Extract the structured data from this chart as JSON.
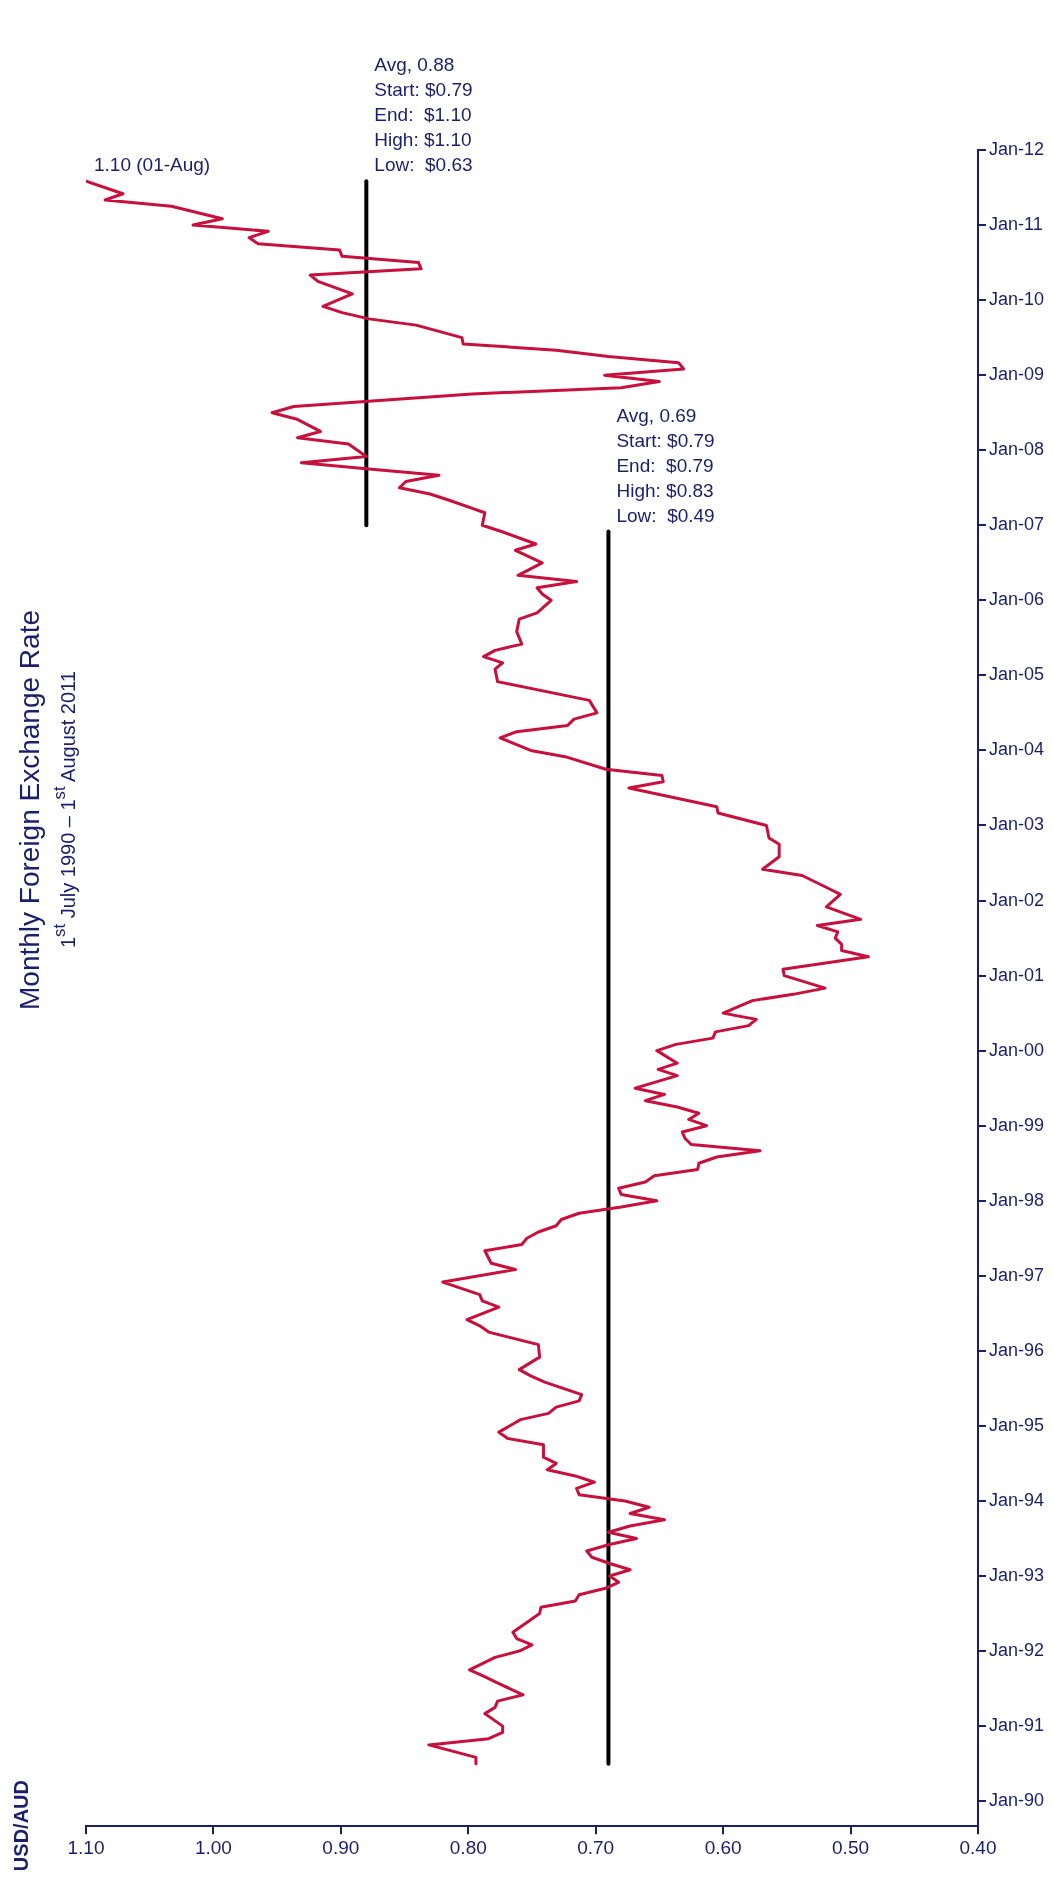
{
  "chart_data": {
    "type": "line",
    "title": "Monthly Foreign Exchange Rate",
    "subtitle": "1$^{st}$ July 1990 – 1$^{st}$ August 2011",
    "ylabel": "USD/AUD",
    "marker": "none",
    "legend": false,
    "orientation": "horizontal",
    "ylim": [
      "1989-09",
      "2012-01"
    ],
    "yticks": [
      {
        "value": "1990-01",
        "label": "Jan-90"
      },
      {
        "value": "1991-01",
        "label": "Jan-91"
      },
      {
        "value": "1992-01",
        "label": "Jan-92"
      },
      {
        "value": "1993-01",
        "label": "Jan-93"
      },
      {
        "value": "1994-01",
        "label": "Jan-94"
      },
      {
        "value": "1995-01",
        "label": "Jan-95"
      },
      {
        "value": "1996-01",
        "label": "Jan-96"
      },
      {
        "value": "1997-01",
        "label": "Jan-97"
      },
      {
        "value": "1998-01",
        "label": "Jan-98"
      },
      {
        "value": "1999-01",
        "label": "Jan-99"
      },
      {
        "value": "2000-01",
        "label": "Jan-00"
      },
      {
        "value": "2001-01",
        "label": "Jan-01"
      },
      {
        "value": "2002-01",
        "label": "Jan-02"
      },
      {
        "value": "2003-01",
        "label": "Jan-03"
      },
      {
        "value": "2004-01",
        "label": "Jan-04"
      },
      {
        "value": "2005-01",
        "label": "Jan-05"
      },
      {
        "value": "2006-01",
        "label": "Jan-06"
      },
      {
        "value": "2007-01",
        "label": "Jan-07"
      },
      {
        "value": "2008-01",
        "label": "Jan-08"
      },
      {
        "value": "2009-01",
        "label": "Jan-09"
      },
      {
        "value": "2010-01",
        "label": "Jan-10"
      },
      {
        "value": "2011-01",
        "label": "Jan-11"
      },
      {
        "value": "2012-01",
        "label": "Jan-12"
      }
    ],
    "xlim": [
      1.1,
      0.4
    ],
    "xticks": [
      {
        "value": 0.4,
        "label": "0.40"
      },
      {
        "value": 0.5,
        "label": "0.50"
      },
      {
        "value": 0.6,
        "label": "0.60"
      },
      {
        "value": 0.7,
        "label": "0.70"
      },
      {
        "value": 0.8,
        "label": "0.80"
      },
      {
        "value": 0.9,
        "label": "0.90"
      },
      {
        "value": 1.0,
        "label": "1.00"
      },
      {
        "value": 1.1,
        "label": "1.10"
      }
    ],
    "series": [
      {
        "color": "#c8103c",
        "x": [
          "1990-07",
          "1990-08",
          "1990-10",
          "1990-11",
          "1990-12",
          "1991-01",
          "1991-03",
          "1991-04",
          "1991-05",
          "1991-06",
          "1991-08",
          "1991-09",
          "1991-10",
          "1991-12",
          "1992-01",
          "1992-02",
          "1992-03",
          "1992-04",
          "1992-05",
          "1992-07",
          "1992-08",
          "1992-09",
          "1992-10",
          "1992-11",
          "1992-12",
          "1993-01",
          "1993-02",
          "1993-03",
          "1993-04",
          "1993-05",
          "1993-06",
          "1993-07",
          "1993-08",
          "1993-09",
          "1993-10",
          "1993-11",
          "1993-12",
          "1994-01",
          "1994-02",
          "1994-03",
          "1994-04",
          "1994-05",
          "1994-06",
          "1994-07",
          "1994-08",
          "1994-10",
          "1994-11",
          "1994-12",
          "1995-02",
          "1995-03",
          "1995-04",
          "1995-05",
          "1995-06",
          "1995-08",
          "1995-09",
          "1995-10",
          "1995-12",
          "1996-02",
          "1996-04",
          "1996-05",
          "1996-06",
          "1996-08",
          "1996-09",
          "1996-10",
          "1996-12",
          "1997-02",
          "1997-03",
          "1997-05",
          "1997-06",
          "1997-07",
          "1997-08",
          "1997-09",
          "1997-10",
          "1997-11",
          "1997-12",
          "1998-01",
          "1998-02",
          "1998-03",
          "1998-04",
          "1998-05",
          "1998-06",
          "1998-07",
          "1998-08",
          "1998-09",
          "1998-10",
          "1998-11",
          "1998-12",
          "1999-01",
          "1999-02",
          "1999-03",
          "1999-04",
          "1999-05",
          "1999-06",
          "1999-07",
          "1999-09",
          "1999-10",
          "1999-11",
          "2000-01",
          "2000-02",
          "2000-03",
          "2000-04",
          "2000-05",
          "2000-06",
          "2000-07",
          "2000-09",
          "2000-10",
          "2000-11",
          "2001-01",
          "2001-02",
          "2001-04",
          "2001-05",
          "2001-06",
          "2001-07",
          "2001-08",
          "2001-09",
          "2001-10",
          "2001-12",
          "2002-02",
          "2002-03",
          "2002-05",
          "2002-06",
          "2002-08",
          "2002-10",
          "2002-11",
          "2003-01",
          "2003-03",
          "2003-04",
          "2003-07",
          "2003-08",
          "2003-09",
          "2003-10",
          "2003-12",
          "2004-01",
          "2004-02",
          "2004-03",
          "2004-04",
          "2004-05",
          "2004-06",
          "2004-07",
          "2004-09",
          "2004-12",
          "2005-02",
          "2005-03",
          "2005-04",
          "2005-05",
          "2005-06",
          "2005-08",
          "2005-10",
          "2005-11",
          "2006-01",
          "2006-02",
          "2006-03",
          "2006-04",
          "2006-05",
          "2006-07",
          "2006-09",
          "2006-10",
          "2006-12",
          "2007-01",
          "2007-03",
          "2007-05",
          "2007-06",
          "2007-07",
          "2007-08",
          "2007-09",
          "2007-10",
          "2007-11",
          "2007-12",
          "2008-02",
          "2008-03",
          "2008-04",
          "2008-06",
          "2008-07",
          "2008-08",
          "2008-10",
          "2008-11",
          "2008-12",
          "2009-01",
          "2009-02",
          "2009-03",
          "2009-04",
          "2009-05",
          "2009-06",
          "2009-07",
          "2009-09",
          "2009-10",
          "2009-11",
          "2009-12",
          "2010-02",
          "2010-04",
          "2010-05",
          "2010-06",
          "2010-07",
          "2010-08",
          "2010-09",
          "2010-10",
          "2010-11",
          "2010-12",
          "2011-01",
          "2011-02",
          "2011-04",
          "2011-05",
          "2011-06",
          "2011-08"
        ],
        "values": [
          0.794,
          0.794,
          0.831,
          0.784,
          0.773,
          0.773,
          0.787,
          0.779,
          0.777,
          0.757,
          0.778,
          0.788,
          0.799,
          0.779,
          0.76,
          0.75,
          0.762,
          0.765,
          0.758,
          0.744,
          0.743,
          0.716,
          0.713,
          0.693,
          0.682,
          0.689,
          0.673,
          0.689,
          0.703,
          0.707,
          0.69,
          0.668,
          0.69,
          0.673,
          0.646,
          0.673,
          0.658,
          0.677,
          0.713,
          0.715,
          0.701,
          0.716,
          0.738,
          0.731,
          0.741,
          0.741,
          0.769,
          0.776,
          0.759,
          0.737,
          0.731,
          0.713,
          0.711,
          0.74,
          0.751,
          0.76,
          0.744,
          0.745,
          0.784,
          0.791,
          0.801,
          0.776,
          0.789,
          0.791,
          0.82,
          0.763,
          0.782,
          0.787,
          0.758,
          0.754,
          0.745,
          0.731,
          0.727,
          0.713,
          0.68,
          0.652,
          0.68,
          0.682,
          0.661,
          0.654,
          0.62,
          0.619,
          0.605,
          0.571,
          0.625,
          0.63,
          0.632,
          0.613,
          0.627,
          0.619,
          0.636,
          0.661,
          0.646,
          0.669,
          0.636,
          0.651,
          0.636,
          0.652,
          0.637,
          0.608,
          0.606,
          0.58,
          0.574,
          0.6,
          0.577,
          0.545,
          0.52,
          0.552,
          0.553,
          0.486,
          0.507,
          0.507,
          0.512,
          0.51,
          0.526,
          0.492,
          0.519,
          0.508,
          0.518,
          0.538,
          0.569,
          0.556,
          0.556,
          0.564,
          0.566,
          0.604,
          0.605,
          0.674,
          0.647,
          0.648,
          0.692,
          0.724,
          0.751,
          0.763,
          0.775,
          0.762,
          0.722,
          0.717,
          0.699,
          0.705,
          0.777,
          0.779,
          0.773,
          0.788,
          0.779,
          0.758,
          0.762,
          0.76,
          0.746,
          0.735,
          0.742,
          0.746,
          0.715,
          0.761,
          0.742,
          0.763,
          0.747,
          0.774,
          0.789,
          0.787,
          0.815,
          0.83,
          0.854,
          0.849,
          0.823,
          0.878,
          0.931,
          0.88,
          0.894,
          0.934,
          0.916,
          0.935,
          0.954,
          0.937,
          0.797,
          0.68,
          0.65,
          0.693,
          0.631,
          0.635,
          0.69,
          0.731,
          0.804,
          0.805,
          0.841,
          0.878,
          0.899,
          0.914,
          0.891,
          0.918,
          0.924,
          0.837,
          0.839,
          0.899,
          0.901,
          0.965,
          0.972,
          0.957,
          1.016,
          0.993,
          1.033,
          1.085,
          1.071,
          1.1
        ]
      },
      {
        "type": "line",
        "color": "#000000",
        "x": [
          "1990-07",
          "2006-12"
        ],
        "values": [
          0.69,
          0.69
        ]
      },
      {
        "type": "line",
        "color": "#000000",
        "x": [
          "2007-01",
          "2011-08"
        ],
        "values": [
          0.88,
          0.88
        ]
      }
    ],
    "annotations": [
      {
        "text": "Avg, 0.69\nStart: $0.79\nEnd:  $0.79\nHigh: $0.83\nLow:  $0.49",
        "y": "2006-12",
        "x": 0.69
      },
      {
        "text": "Avg, 0.88\nStart: $0.79\nEnd:  $1.10\nHigh: $1.10\nLow:  $0.63",
        "y": "2011-08",
        "x": 0.88
      },
      {
        "text": "1.10 (01-Aug)",
        "y": "2011-08",
        "x": 1.1
      }
    ]
  }
}
